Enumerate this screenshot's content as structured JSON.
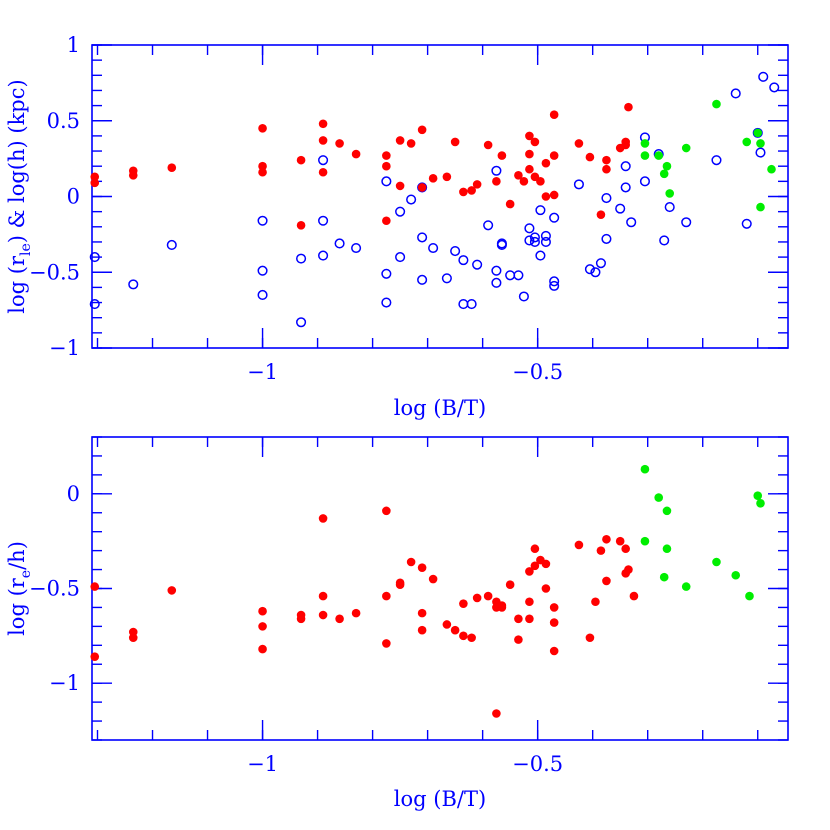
{
  "colors": {
    "axis": "#0000ff",
    "red": "#ff0000",
    "green": "#00ee00",
    "blue_open": "#0000ff",
    "background": "#ffffff"
  },
  "chart_data": [
    {
      "type": "scatter",
      "xlabel": "log (B/T)",
      "ylabel_parts": [
        "log (r",
        "le",
        ") & log(h) (kpc)"
      ],
      "xlim": [
        -1.31,
        -0.045
      ],
      "ylim": [
        -1.0,
        1.0
      ],
      "x_ticks": [
        -1,
        -0.5
      ],
      "x_tick_labels": [
        "−1",
        "−0.5"
      ],
      "y_ticks": [
        -1,
        -0.5,
        0,
        0.5,
        1
      ],
      "y_tick_labels": [
        "−1",
        "−0.5",
        "0",
        "0.5",
        "1"
      ],
      "grid": false,
      "series": [
        {
          "marker": "open-circle",
          "color": "#0000ff",
          "points": [
            [
              -1.305,
              -0.4
            ],
            [
              -1.305,
              -0.71
            ],
            [
              -1.235,
              -0.58
            ],
            [
              -1.165,
              -0.32
            ],
            [
              -1.0,
              -0.16
            ],
            [
              -1.0,
              -0.49
            ],
            [
              -1.0,
              -0.65
            ],
            [
              -0.93,
              -0.41
            ],
            [
              -0.93,
              -0.83
            ],
            [
              -0.89,
              0.24
            ],
            [
              -0.89,
              -0.16
            ],
            [
              -0.89,
              -0.39
            ],
            [
              -0.86,
              -0.31
            ],
            [
              -0.83,
              -0.34
            ],
            [
              -0.775,
              0.1
            ],
            [
              -0.775,
              -0.51
            ],
            [
              -0.775,
              -0.7
            ],
            [
              -0.75,
              -0.1
            ],
            [
              -0.75,
              -0.4
            ],
            [
              -0.73,
              -0.02
            ],
            [
              -0.71,
              0.06
            ],
            [
              -0.71,
              -0.27
            ],
            [
              -0.71,
              -0.55
            ],
            [
              -0.69,
              -0.34
            ],
            [
              -0.665,
              -0.54
            ],
            [
              -0.65,
              -0.36
            ],
            [
              -0.635,
              -0.42
            ],
            [
              -0.635,
              -0.71
            ],
            [
              -0.62,
              -0.71
            ],
            [
              -0.61,
              -0.45
            ],
            [
              -0.59,
              -0.19
            ],
            [
              -0.575,
              0.17
            ],
            [
              -0.575,
              -0.49
            ],
            [
              -0.575,
              -0.57
            ],
            [
              -0.565,
              -0.32
            ],
            [
              -0.565,
              -0.31
            ],
            [
              -0.55,
              -0.52
            ],
            [
              -0.535,
              -0.52
            ],
            [
              -0.525,
              -0.66
            ],
            [
              -0.515,
              -0.21
            ],
            [
              -0.515,
              -0.29
            ],
            [
              -0.505,
              -0.27
            ],
            [
              -0.505,
              -0.3
            ],
            [
              -0.495,
              -0.09
            ],
            [
              -0.495,
              -0.39
            ],
            [
              -0.485,
              -0.26
            ],
            [
              -0.485,
              -0.3
            ],
            [
              -0.47,
              -0.14
            ],
            [
              -0.47,
              -0.56
            ],
            [
              -0.47,
              -0.59
            ],
            [
              -0.425,
              0.08
            ],
            [
              -0.405,
              -0.48
            ],
            [
              -0.395,
              -0.5
            ],
            [
              -0.385,
              -0.44
            ],
            [
              -0.375,
              -0.01
            ],
            [
              -0.375,
              -0.28
            ],
            [
              -0.35,
              -0.08
            ],
            [
              -0.34,
              0.06
            ],
            [
              -0.34,
              0.2
            ],
            [
              -0.33,
              -0.17
            ],
            [
              -0.305,
              0.39
            ],
            [
              -0.305,
              0.1
            ],
            [
              -0.28,
              0.28
            ],
            [
              -0.27,
              -0.29
            ],
            [
              -0.26,
              -0.07
            ],
            [
              -0.23,
              -0.17
            ],
            [
              -0.175,
              0.24
            ],
            [
              -0.14,
              0.68
            ],
            [
              -0.12,
              -0.18
            ],
            [
              -0.1,
              0.42
            ],
            [
              -0.095,
              0.29
            ],
            [
              -0.09,
              0.79
            ],
            [
              -0.07,
              0.72
            ]
          ]
        },
        {
          "marker": "filled-circle",
          "color": "#ff0000",
          "points": [
            [
              -1.305,
              0.13
            ],
            [
              -1.305,
              0.09
            ],
            [
              -1.235,
              0.17
            ],
            [
              -1.235,
              0.14
            ],
            [
              -1.165,
              0.19
            ],
            [
              -1.0,
              0.45
            ],
            [
              -1.0,
              0.2
            ],
            [
              -1.0,
              0.16
            ],
            [
              -0.93,
              0.24
            ],
            [
              -0.93,
              -0.19
            ],
            [
              -0.89,
              0.48
            ],
            [
              -0.89,
              0.37
            ],
            [
              -0.89,
              0.16
            ],
            [
              -0.86,
              0.35
            ],
            [
              -0.83,
              0.28
            ],
            [
              -0.775,
              0.27
            ],
            [
              -0.775,
              0.2
            ],
            [
              -0.775,
              -0.16
            ],
            [
              -0.75,
              0.37
            ],
            [
              -0.75,
              0.07
            ],
            [
              -0.73,
              0.35
            ],
            [
              -0.71,
              0.44
            ],
            [
              -0.71,
              0.06
            ],
            [
              -0.69,
              0.12
            ],
            [
              -0.665,
              0.13
            ],
            [
              -0.65,
              0.36
            ],
            [
              -0.635,
              0.03
            ],
            [
              -0.62,
              0.04
            ],
            [
              -0.61,
              0.08
            ],
            [
              -0.59,
              0.34
            ],
            [
              -0.575,
              0.1
            ],
            [
              -0.565,
              0.27
            ],
            [
              -0.55,
              -0.05
            ],
            [
              -0.535,
              0.14
            ],
            [
              -0.525,
              0.1
            ],
            [
              -0.515,
              0.4
            ],
            [
              -0.515,
              0.28
            ],
            [
              -0.515,
              0.18
            ],
            [
              -0.505,
              0.36
            ],
            [
              -0.505,
              0.13
            ],
            [
              -0.495,
              0.1
            ],
            [
              -0.485,
              0.22
            ],
            [
              -0.485,
              0.0
            ],
            [
              -0.47,
              0.54
            ],
            [
              -0.47,
              0.27
            ],
            [
              -0.47,
              0.01
            ],
            [
              -0.425,
              0.35
            ],
            [
              -0.405,
              0.26
            ],
            [
              -0.385,
              -0.12
            ],
            [
              -0.375,
              0.18
            ],
            [
              -0.375,
              0.24
            ],
            [
              -0.35,
              0.32
            ],
            [
              -0.34,
              0.34
            ],
            [
              -0.34,
              0.36
            ],
            [
              -0.335,
              0.59
            ]
          ]
        },
        {
          "marker": "filled-circle",
          "color": "#00ee00",
          "points": [
            [
              -0.305,
              0.35
            ],
            [
              -0.305,
              0.27
            ],
            [
              -0.28,
              0.27
            ],
            [
              -0.27,
              0.15
            ],
            [
              -0.265,
              0.2
            ],
            [
              -0.26,
              0.02
            ],
            [
              -0.23,
              0.32
            ],
            [
              -0.175,
              0.61
            ],
            [
              -0.12,
              0.36
            ],
            [
              -0.1,
              0.42
            ],
            [
              -0.095,
              0.35
            ],
            [
              -0.095,
              -0.07
            ],
            [
              -0.075,
              0.18
            ]
          ]
        }
      ]
    },
    {
      "type": "scatter",
      "xlabel": "log (B/T)",
      "ylabel_parts": [
        "log (r",
        "e",
        "/h)"
      ],
      "xlim": [
        -1.31,
        -0.045
      ],
      "ylim": [
        -1.3,
        0.3
      ],
      "x_ticks": [
        -1,
        -0.5
      ],
      "x_tick_labels": [
        "−1",
        "−0.5"
      ],
      "y_ticks": [
        -1,
        -0.5,
        0
      ],
      "y_tick_labels": [
        "−1",
        "−0.5",
        "0"
      ],
      "grid": false,
      "series": [
        {
          "marker": "filled-circle",
          "color": "#ff0000",
          "points": [
            [
              -1.305,
              -0.49
            ],
            [
              -1.305,
              -0.86
            ],
            [
              -1.235,
              -0.73
            ],
            [
              -1.235,
              -0.76
            ],
            [
              -1.165,
              -0.51
            ],
            [
              -1.0,
              -0.62
            ],
            [
              -1.0,
              -0.7
            ],
            [
              -1.0,
              -0.82
            ],
            [
              -0.93,
              -0.64
            ],
            [
              -0.93,
              -0.66
            ],
            [
              -0.89,
              -0.13
            ],
            [
              -0.89,
              -0.54
            ],
            [
              -0.89,
              -0.64
            ],
            [
              -0.86,
              -0.66
            ],
            [
              -0.83,
              -0.63
            ],
            [
              -0.775,
              -0.09
            ],
            [
              -0.775,
              -0.54
            ],
            [
              -0.775,
              -0.79
            ],
            [
              -0.75,
              -0.47
            ],
            [
              -0.75,
              -0.48
            ],
            [
              -0.73,
              -0.36
            ],
            [
              -0.71,
              -0.39
            ],
            [
              -0.71,
              -0.63
            ],
            [
              -0.71,
              -0.72
            ],
            [
              -0.69,
              -0.45
            ],
            [
              -0.665,
              -0.69
            ],
            [
              -0.65,
              -0.72
            ],
            [
              -0.635,
              -0.58
            ],
            [
              -0.635,
              -0.75
            ],
            [
              -0.62,
              -0.76
            ],
            [
              -0.61,
              -0.55
            ],
            [
              -0.59,
              -0.54
            ],
            [
              -0.575,
              -0.57
            ],
            [
              -0.575,
              -0.6
            ],
            [
              -0.575,
              -1.16
            ],
            [
              -0.565,
              -0.59
            ],
            [
              -0.565,
              -0.6
            ],
            [
              -0.55,
              -0.48
            ],
            [
              -0.535,
              -0.66
            ],
            [
              -0.535,
              -0.77
            ],
            [
              -0.515,
              -0.41
            ],
            [
              -0.515,
              -0.57
            ],
            [
              -0.515,
              -0.66
            ],
            [
              -0.505,
              -0.38
            ],
            [
              -0.505,
              -0.29
            ],
            [
              -0.495,
              -0.35
            ],
            [
              -0.485,
              -0.37
            ],
            [
              -0.485,
              -0.5
            ],
            [
              -0.47,
              -0.6
            ],
            [
              -0.47,
              -0.68
            ],
            [
              -0.47,
              -0.83
            ],
            [
              -0.425,
              -0.27
            ],
            [
              -0.405,
              -0.76
            ],
            [
              -0.395,
              -0.57
            ],
            [
              -0.385,
              -0.3
            ],
            [
              -0.375,
              -0.24
            ],
            [
              -0.375,
              -0.46
            ],
            [
              -0.35,
              -0.25
            ],
            [
              -0.34,
              -0.42
            ],
            [
              -0.34,
              -0.29
            ],
            [
              -0.335,
              -0.4
            ],
            [
              -0.325,
              -0.54
            ]
          ]
        },
        {
          "marker": "filled-circle",
          "color": "#00ee00",
          "points": [
            [
              -0.305,
              0.13
            ],
            [
              -0.305,
              -0.25
            ],
            [
              -0.28,
              -0.02
            ],
            [
              -0.27,
              -0.44
            ],
            [
              -0.265,
              -0.09
            ],
            [
              -0.265,
              -0.29
            ],
            [
              -0.23,
              -0.49
            ],
            [
              -0.175,
              -0.36
            ],
            [
              -0.14,
              -0.43
            ],
            [
              -0.115,
              -0.54
            ],
            [
              -0.1,
              -0.01
            ],
            [
              -0.095,
              -0.05
            ]
          ]
        }
      ]
    }
  ]
}
